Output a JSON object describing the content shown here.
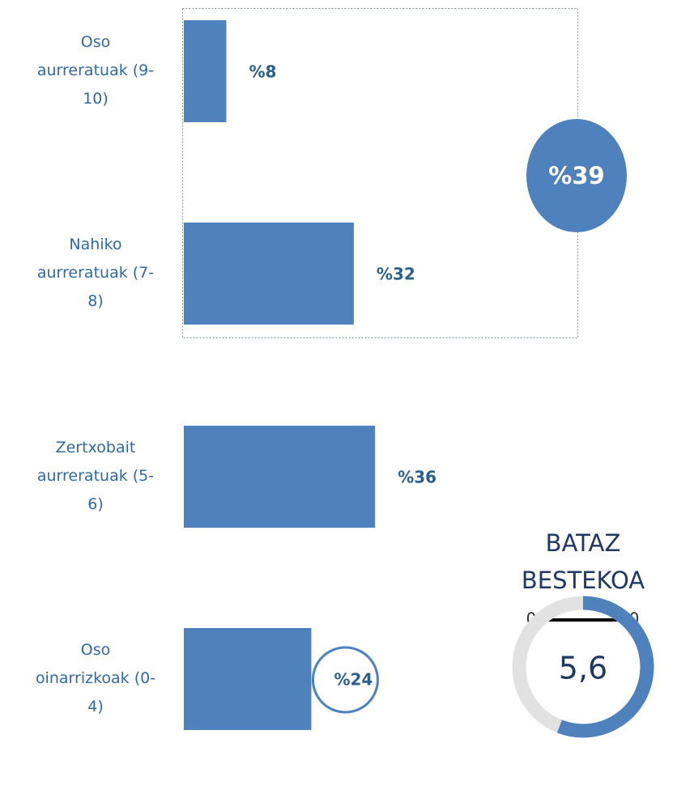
{
  "chart_data": {
    "type": "bar",
    "orientation": "horizontal",
    "categories": [
      "Oso\naurreratuak (9-\n10)",
      "Nahiko\naurreratuak (7-\n8)",
      "Zertxobait\naurreratuak (5-\n6)",
      "Oso\noinarrizkoak (0-\n4)"
    ],
    "values": [
      8,
      32,
      36,
      24
    ],
    "value_labels": [
      "%8",
      "%32",
      "%36",
      "%24"
    ],
    "color": "#4f81bd",
    "group_total": {
      "value": 39,
      "label": "%39"
    },
    "gauge": {
      "title": "BATAZ BESTEKOA",
      "min": 0,
      "max": 10,
      "value": 5.6,
      "value_label": "5,6"
    }
  }
}
